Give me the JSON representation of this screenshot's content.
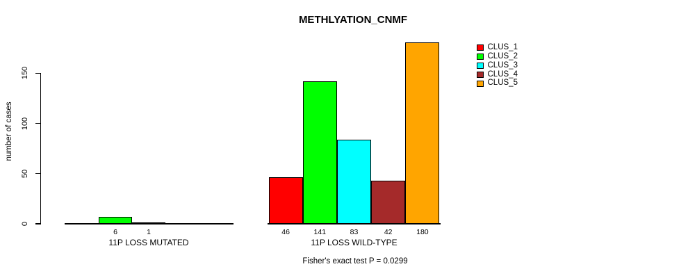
{
  "chart_data": {
    "type": "bar",
    "title": "METHLYATION_CNMF",
    "ylabel": "number of cases",
    "xlabel": "",
    "yticks": [
      "0",
      "50",
      "100",
      "150"
    ],
    "ytick_values": [
      0,
      50,
      100,
      150
    ],
    "ylim": [
      0,
      185
    ],
    "grid": false,
    "background_color": "#FFFFFF",
    "axis_color": "#000000",
    "legend_position": "right-outside",
    "legend": [
      "CLUS_1",
      "CLUS_2",
      "CLUS_3",
      "CLUS_4",
      "CLUS_5"
    ],
    "colors": [
      "#FF0000",
      "#00FF00",
      "#00FFFF",
      "#A52A2A",
      "#FFA500"
    ],
    "groups": [
      {
        "label": "11P LOSS MUTATED",
        "values": [
          0,
          6,
          1,
          0,
          0
        ],
        "value_labels": [
          "",
          "6",
          "1",
          "",
          ""
        ]
      },
      {
        "label": "11P LOSS WILD-TYPE",
        "values": [
          46,
          141,
          83,
          42,
          180
        ],
        "value_labels": [
          "46",
          "141",
          "83",
          "42",
          "180"
        ]
      }
    ],
    "annotation": "Fisher's exact test P = 0.0299"
  }
}
